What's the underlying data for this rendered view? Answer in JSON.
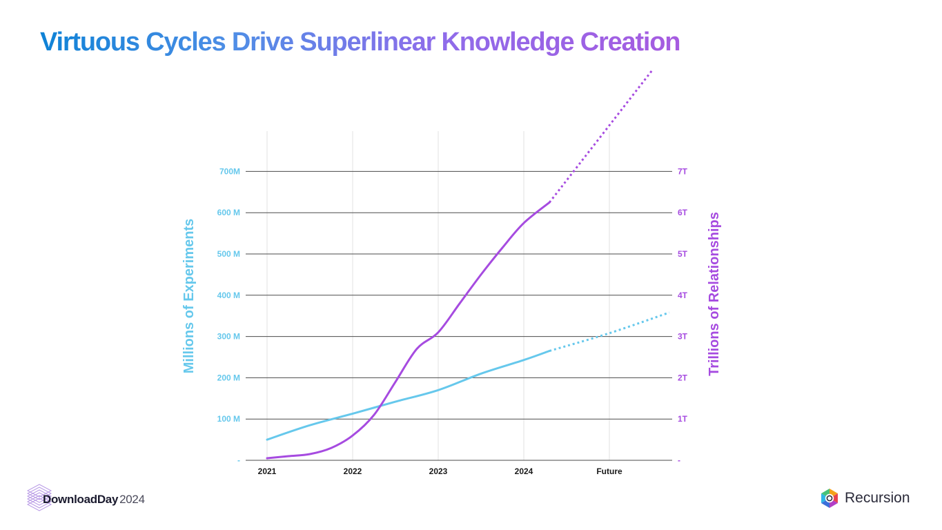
{
  "slide": {
    "title": "Virtuous Cycles Drive Superlinear Knowledge Creation"
  },
  "footer": {
    "event_brand": "DownloadDay",
    "event_year": "2024",
    "company": "Recursion"
  },
  "colors": {
    "experiments": "#66c8ec",
    "relationships": "#a64be0",
    "gridline": "#4a4a4a",
    "vgrid": "#e2e2e2"
  },
  "chart_data": {
    "type": "line",
    "x_categories": [
      "2021",
      "2022",
      "2023",
      "2024",
      "Future"
    ],
    "y_left": {
      "label": "Millions of Experiments",
      "unit": "M",
      "range": [
        0,
        700
      ],
      "ticks": [
        0,
        100,
        200,
        300,
        400,
        500,
        600,
        700
      ],
      "tick_labels": [
        "-",
        "100 M",
        "200 M",
        "300 M",
        "400  M",
        "500 M",
        "600 M",
        "700M"
      ]
    },
    "y_right": {
      "label": "Trillions of Relationships",
      "unit": "T",
      "range": [
        0,
        7
      ],
      "ticks": [
        0,
        1,
        2,
        3,
        4,
        5,
        6,
        7
      ],
      "tick_labels": [
        "-",
        "1T",
        "2T",
        "3T",
        "4T",
        "5T",
        "6T",
        "7T"
      ]
    },
    "grid": {
      "horizontal": true,
      "vertical": true
    },
    "series": [
      {
        "name": "Millions of Experiments",
        "axis": "left",
        "color": "#66c8ec",
        "actual": [
          [
            0,
            50
          ],
          [
            0.5,
            85
          ],
          [
            1,
            113
          ],
          [
            1.5,
            142
          ],
          [
            2,
            170
          ],
          [
            2.5,
            210
          ],
          [
            3,
            243
          ],
          [
            3.3,
            265
          ]
        ],
        "projected": [
          [
            3.3,
            265
          ],
          [
            4,
            308
          ],
          [
            4.7,
            358
          ]
        ]
      },
      {
        "name": "Trillions of Relationships",
        "axis": "right",
        "color": "#a64be0",
        "actual": [
          [
            0,
            0.05
          ],
          [
            0.25,
            0.1
          ],
          [
            0.5,
            0.15
          ],
          [
            0.75,
            0.3
          ],
          [
            1,
            0.6
          ],
          [
            1.25,
            1.1
          ],
          [
            1.5,
            1.9
          ],
          [
            1.75,
            2.7
          ],
          [
            2,
            3.1
          ],
          [
            2.25,
            3.8
          ],
          [
            2.5,
            4.5
          ],
          [
            2.75,
            5.15
          ],
          [
            3,
            5.75
          ],
          [
            3.3,
            6.25
          ]
        ],
        "projected": [
          [
            3.3,
            6.25
          ],
          [
            4.5,
            9.45
          ]
        ]
      }
    ]
  }
}
